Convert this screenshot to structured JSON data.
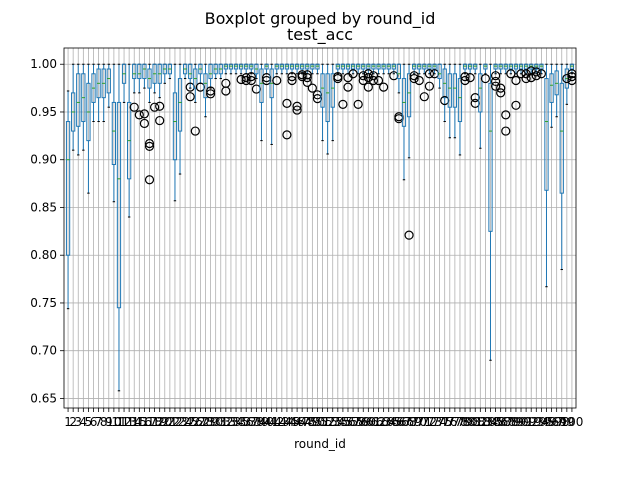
{
  "chart_data": {
    "type": "boxplot",
    "suptitle": "Boxplot grouped by round_id",
    "title": "test_acc",
    "xlabel": "round_id",
    "ylabel": "",
    "ylim": [
      0.64,
      1.017
    ],
    "yticks": [
      0.65,
      0.7,
      0.75,
      0.8,
      0.85,
      0.9,
      0.95,
      1.0
    ],
    "grid": true,
    "categories_range": [
      1,
      100
    ],
    "colors": {
      "box": "#1f77b4",
      "median": "#2ca02c",
      "cap": "#000000",
      "grid": "#b0b0b0"
    },
    "boxes": [
      {
        "round": 1,
        "whislo": 0.744,
        "q1": 0.8,
        "med": 0.9,
        "q3": 0.94,
        "whishi": 0.972,
        "fliers": []
      },
      {
        "round": 2,
        "whislo": 0.91,
        "q1": 0.93,
        "med": 0.95,
        "q3": 0.97,
        "whishi": 1.0,
        "fliers": []
      },
      {
        "round": 3,
        "whislo": 0.905,
        "q1": 0.935,
        "med": 0.96,
        "q3": 0.99,
        "whishi": 1.0,
        "fliers": []
      },
      {
        "round": 4,
        "whislo": 0.91,
        "q1": 0.94,
        "med": 0.965,
        "q3": 0.99,
        "whishi": 1.0,
        "fliers": []
      },
      {
        "round": 5,
        "whislo": 0.865,
        "q1": 0.92,
        "med": 0.95,
        "q3": 0.98,
        "whishi": 1.0,
        "fliers": []
      },
      {
        "round": 6,
        "whislo": 0.94,
        "q1": 0.96,
        "med": 0.975,
        "q3": 0.99,
        "whishi": 1.0,
        "fliers": []
      },
      {
        "round": 7,
        "whislo": 0.94,
        "q1": 0.965,
        "med": 0.98,
        "q3": 0.995,
        "whishi": 1.0,
        "fliers": []
      },
      {
        "round": 8,
        "whislo": 0.94,
        "q1": 0.965,
        "med": 0.98,
        "q3": 0.995,
        "whishi": 1.0,
        "fliers": []
      },
      {
        "round": 9,
        "whislo": 0.955,
        "q1": 0.97,
        "med": 0.985,
        "q3": 0.995,
        "whishi": 1.0,
        "fliers": []
      },
      {
        "round": 10,
        "whislo": 0.856,
        "q1": 0.895,
        "med": 0.93,
        "q3": 0.96,
        "whishi": 1.0,
        "fliers": []
      },
      {
        "round": 11,
        "whislo": 0.658,
        "q1": 0.745,
        "med": 0.88,
        "q3": 0.96,
        "whishi": 1.0,
        "fliers": []
      },
      {
        "round": 12,
        "whislo": 0.96,
        "q1": 0.98,
        "med": 0.99,
        "q3": 1.0,
        "whishi": 1.0,
        "fliers": []
      },
      {
        "round": 13,
        "whislo": 0.84,
        "q1": 0.88,
        "med": 0.92,
        "q3": 0.96,
        "whishi": 1.0,
        "fliers": []
      },
      {
        "round": 14,
        "whislo": 0.97,
        "q1": 0.985,
        "med": 0.99,
        "q3": 1.0,
        "whishi": 1.0,
        "fliers": [
          0.955
        ]
      },
      {
        "round": 15,
        "whislo": 0.97,
        "q1": 0.985,
        "med": 0.99,
        "q3": 1.0,
        "whishi": 1.0,
        "fliers": [
          0.947
        ]
      },
      {
        "round": 16,
        "whislo": 0.975,
        "q1": 0.985,
        "med": 0.995,
        "q3": 1.0,
        "whishi": 1.0,
        "fliers": [
          0.938,
          0.948
        ]
      },
      {
        "round": 17,
        "whislo": 0.96,
        "q1": 0.975,
        "med": 0.985,
        "q3": 0.995,
        "whishi": 1.0,
        "fliers": [
          0.879,
          0.914,
          0.917
        ]
      },
      {
        "round": 18,
        "whislo": 0.97,
        "q1": 0.98,
        "med": 0.99,
        "q3": 1.0,
        "whishi": 1.0,
        "fliers": [
          0.955
        ]
      },
      {
        "round": 19,
        "whislo": 0.965,
        "q1": 0.98,
        "med": 0.99,
        "q3": 1.0,
        "whishi": 1.0,
        "fliers": [
          0.941,
          0.956
        ]
      },
      {
        "round": 20,
        "whislo": 0.98,
        "q1": 0.99,
        "med": 0.995,
        "q3": 1.0,
        "whishi": 1.0,
        "fliers": []
      },
      {
        "round": 21,
        "whislo": 0.985,
        "q1": 0.99,
        "med": 0.995,
        "q3": 1.0,
        "whishi": 1.0,
        "fliers": []
      },
      {
        "round": 22,
        "whislo": 0.857,
        "q1": 0.9,
        "med": 0.94,
        "q3": 0.97,
        "whishi": 1.0,
        "fliers": []
      },
      {
        "round": 23,
        "whislo": 0.885,
        "q1": 0.93,
        "med": 0.96,
        "q3": 0.985,
        "whishi": 1.0,
        "fliers": []
      },
      {
        "round": 24,
        "whislo": 0.985,
        "q1": 0.99,
        "med": 0.995,
        "q3": 1.0,
        "whishi": 1.0,
        "fliers": []
      },
      {
        "round": 25,
        "whislo": 0.975,
        "q1": 0.985,
        "med": 0.99,
        "q3": 1.0,
        "whishi": 1.0,
        "fliers": [
          0.966,
          0.976
        ]
      },
      {
        "round": 26,
        "whislo": 0.96,
        "q1": 0.975,
        "med": 0.985,
        "q3": 0.995,
        "whishi": 1.0,
        "fliers": [
          0.93
        ]
      },
      {
        "round": 27,
        "whislo": 0.98,
        "q1": 0.99,
        "med": 0.995,
        "q3": 1.0,
        "whishi": 1.0,
        "fliers": [
          0.976
        ]
      },
      {
        "round": 28,
        "whislo": 0.945,
        "q1": 0.965,
        "med": 0.98,
        "q3": 0.99,
        "whishi": 1.0,
        "fliers": []
      },
      {
        "round": 29,
        "whislo": 0.975,
        "q1": 0.985,
        "med": 0.99,
        "q3": 1.0,
        "whishi": 1.0,
        "fliers": [
          0.969,
          0.972
        ]
      },
      {
        "round": 30,
        "whislo": 0.985,
        "q1": 0.99,
        "med": 0.995,
        "q3": 1.0,
        "whishi": 1.0,
        "fliers": []
      },
      {
        "round": 31,
        "whislo": 0.985,
        "q1": 0.99,
        "med": 0.995,
        "q3": 1.0,
        "whishi": 1.0,
        "fliers": []
      },
      {
        "round": 32,
        "whislo": 0.99,
        "q1": 0.995,
        "med": 0.998,
        "q3": 1.0,
        "whishi": 1.0,
        "fliers": [
          0.972,
          0.98
        ]
      },
      {
        "round": 33,
        "whislo": 0.99,
        "q1": 0.995,
        "med": 0.998,
        "q3": 1.0,
        "whishi": 1.0,
        "fliers": []
      },
      {
        "round": 34,
        "whislo": 0.99,
        "q1": 0.995,
        "med": 0.998,
        "q3": 1.0,
        "whishi": 1.0,
        "fliers": []
      },
      {
        "round": 35,
        "whislo": 0.99,
        "q1": 0.995,
        "med": 0.998,
        "q3": 1.0,
        "whishi": 1.0,
        "fliers": [
          0.984
        ]
      },
      {
        "round": 36,
        "whislo": 0.99,
        "q1": 0.995,
        "med": 0.998,
        "q3": 1.0,
        "whishi": 1.0,
        "fliers": [
          0.983,
          0.986
        ]
      },
      {
        "round": 37,
        "whislo": 0.99,
        "q1": 0.995,
        "med": 0.998,
        "q3": 1.0,
        "whishi": 1.0,
        "fliers": [
          0.983,
          0.987
        ]
      },
      {
        "round": 38,
        "whislo": 0.985,
        "q1": 0.99,
        "med": 0.995,
        "q3": 1.0,
        "whishi": 1.0,
        "fliers": [
          0.974
        ]
      },
      {
        "round": 39,
        "whislo": 0.92,
        "q1": 0.96,
        "med": 0.98,
        "q3": 0.995,
        "whishi": 1.0,
        "fliers": []
      },
      {
        "round": 40,
        "whislo": 0.99,
        "q1": 0.995,
        "med": 0.998,
        "q3": 1.0,
        "whishi": 1.0,
        "fliers": [
          0.983,
          0.986
        ]
      },
      {
        "round": 41,
        "whislo": 0.916,
        "q1": 0.965,
        "med": 0.98,
        "q3": 0.995,
        "whishi": 1.0,
        "fliers": []
      },
      {
        "round": 42,
        "whislo": 0.99,
        "q1": 0.995,
        "med": 0.998,
        "q3": 1.0,
        "whishi": 1.0,
        "fliers": [
          0.983
        ]
      },
      {
        "round": 43,
        "whislo": 0.99,
        "q1": 0.995,
        "med": 0.998,
        "q3": 1.0,
        "whishi": 1.0,
        "fliers": []
      },
      {
        "round": 44,
        "whislo": 0.99,
        "q1": 0.995,
        "med": 0.998,
        "q3": 1.0,
        "whishi": 1.0,
        "fliers": [
          0.926,
          0.959
        ]
      },
      {
        "round": 45,
        "whislo": 0.99,
        "q1": 0.995,
        "med": 0.998,
        "q3": 1.0,
        "whishi": 1.0,
        "fliers": [
          0.983,
          0.987
        ]
      },
      {
        "round": 46,
        "whislo": 0.99,
        "q1": 0.995,
        "med": 0.998,
        "q3": 1.0,
        "whishi": 1.0,
        "fliers": [
          0.952,
          0.956
        ]
      },
      {
        "round": 47,
        "whislo": 0.99,
        "q1": 0.995,
        "med": 0.998,
        "q3": 1.0,
        "whishi": 1.0,
        "fliers": [
          0.987,
          0.989
        ]
      },
      {
        "round": 48,
        "whislo": 0.99,
        "q1": 0.995,
        "med": 0.998,
        "q3": 1.0,
        "whishi": 1.0,
        "fliers": [
          0.981,
          0.986,
          0.989
        ]
      },
      {
        "round": 49,
        "whislo": 0.99,
        "q1": 0.995,
        "med": 0.998,
        "q3": 1.0,
        "whishi": 1.0,
        "fliers": [
          0.975
        ]
      },
      {
        "round": 50,
        "whislo": 0.99,
        "q1": 0.995,
        "med": 0.998,
        "q3": 1.0,
        "whishi": 1.0,
        "fliers": [
          0.964,
          0.968
        ]
      },
      {
        "round": 51,
        "whislo": 0.92,
        "q1": 0.955,
        "med": 0.975,
        "q3": 0.99,
        "whishi": 1.0,
        "fliers": []
      },
      {
        "round": 52,
        "whislo": 0.906,
        "q1": 0.94,
        "med": 0.97,
        "q3": 0.99,
        "whishi": 1.0,
        "fliers": []
      },
      {
        "round": 53,
        "whislo": 0.92,
        "q1": 0.955,
        "med": 0.975,
        "q3": 0.99,
        "whishi": 1.0,
        "fliers": []
      },
      {
        "round": 54,
        "whislo": 0.99,
        "q1": 0.995,
        "med": 0.998,
        "q3": 1.0,
        "whishi": 1.0,
        "fliers": [
          0.985,
          0.987
        ]
      },
      {
        "round": 55,
        "whislo": 0.99,
        "q1": 0.995,
        "med": 0.998,
        "q3": 1.0,
        "whishi": 1.0,
        "fliers": [
          0.958
        ]
      },
      {
        "round": 56,
        "whislo": 0.99,
        "q1": 0.995,
        "med": 0.998,
        "q3": 1.0,
        "whishi": 1.0,
        "fliers": [
          0.976,
          0.986
        ]
      },
      {
        "round": 57,
        "whislo": 0.99,
        "q1": 0.995,
        "med": 0.998,
        "q3": 1.0,
        "whishi": 1.0,
        "fliers": [
          0.99
        ]
      },
      {
        "round": 58,
        "whislo": 0.99,
        "q1": 0.995,
        "med": 0.998,
        "q3": 1.0,
        "whishi": 1.0,
        "fliers": [
          0.958
        ]
      },
      {
        "round": 59,
        "whislo": 0.99,
        "q1": 0.995,
        "med": 0.998,
        "q3": 1.0,
        "whishi": 1.0,
        "fliers": [
          0.983,
          0.988
        ]
      },
      {
        "round": 60,
        "whislo": 0.99,
        "q1": 0.995,
        "med": 0.998,
        "q3": 1.0,
        "whishi": 1.0,
        "fliers": [
          0.976,
          0.986,
          0.99
        ]
      },
      {
        "round": 61,
        "whislo": 0.99,
        "q1": 0.995,
        "med": 0.998,
        "q3": 1.0,
        "whishi": 1.0,
        "fliers": [
          0.983,
          0.988
        ]
      },
      {
        "round": 62,
        "whislo": 0.99,
        "q1": 0.995,
        "med": 0.998,
        "q3": 1.0,
        "whishi": 1.0,
        "fliers": [
          0.983
        ]
      },
      {
        "round": 63,
        "whislo": 0.99,
        "q1": 0.995,
        "med": 0.998,
        "q3": 1.0,
        "whishi": 1.0,
        "fliers": [
          0.976
        ]
      },
      {
        "round": 64,
        "whislo": 0.99,
        "q1": 0.995,
        "med": 0.998,
        "q3": 1.0,
        "whishi": 1.0,
        "fliers": []
      },
      {
        "round": 65,
        "whislo": 0.99,
        "q1": 0.995,
        "med": 0.998,
        "q3": 1.0,
        "whishi": 1.0,
        "fliers": [
          0.988
        ]
      },
      {
        "round": 66,
        "whislo": 0.97,
        "q1": 0.985,
        "med": 0.99,
        "q3": 1.0,
        "whishi": 1.0,
        "fliers": [
          0.943,
          0.945
        ]
      },
      {
        "round": 67,
        "whislo": 0.879,
        "q1": 0.935,
        "med": 0.96,
        "q3": 0.985,
        "whishi": 1.0,
        "fliers": []
      },
      {
        "round": 68,
        "whislo": 0.902,
        "q1": 0.945,
        "med": 0.97,
        "q3": 0.99,
        "whishi": 1.0,
        "fliers": [
          0.821
        ]
      },
      {
        "round": 69,
        "whislo": 0.99,
        "q1": 0.995,
        "med": 0.998,
        "q3": 1.0,
        "whishi": 1.0,
        "fliers": [
          0.985,
          0.988
        ]
      },
      {
        "round": 70,
        "whislo": 0.99,
        "q1": 0.995,
        "med": 0.998,
        "q3": 1.0,
        "whishi": 1.0,
        "fliers": [
          0.983
        ]
      },
      {
        "round": 71,
        "whislo": 0.99,
        "q1": 0.995,
        "med": 0.998,
        "q3": 1.0,
        "whishi": 1.0,
        "fliers": [
          0.966
        ]
      },
      {
        "round": 72,
        "whislo": 0.99,
        "q1": 0.995,
        "med": 0.998,
        "q3": 1.0,
        "whishi": 1.0,
        "fliers": [
          0.977,
          0.99
        ]
      },
      {
        "round": 73,
        "whislo": 0.99,
        "q1": 0.995,
        "med": 0.998,
        "q3": 1.0,
        "whishi": 1.0,
        "fliers": [
          0.99
        ]
      },
      {
        "round": 74,
        "whislo": 0.975,
        "q1": 0.985,
        "med": 0.99,
        "q3": 1.0,
        "whishi": 1.0,
        "fliers": []
      },
      {
        "round": 75,
        "whislo": 0.94,
        "q1": 0.965,
        "med": 0.98,
        "q3": 0.995,
        "whishi": 1.0,
        "fliers": [
          0.962
        ]
      },
      {
        "round": 76,
        "whislo": 0.923,
        "q1": 0.955,
        "med": 0.975,
        "q3": 0.99,
        "whishi": 1.0,
        "fliers": []
      },
      {
        "round": 77,
        "whislo": 0.923,
        "q1": 0.955,
        "med": 0.975,
        "q3": 0.99,
        "whishi": 1.0,
        "fliers": []
      },
      {
        "round": 78,
        "whislo": 0.905,
        "q1": 0.94,
        "med": 0.965,
        "q3": 0.985,
        "whishi": 1.0,
        "fliers": []
      },
      {
        "round": 79,
        "whislo": 0.99,
        "q1": 0.995,
        "med": 0.998,
        "q3": 1.0,
        "whishi": 1.0,
        "fliers": [
          0.983,
          0.987
        ]
      },
      {
        "round": 80,
        "whislo": 0.99,
        "q1": 0.995,
        "med": 0.998,
        "q3": 1.0,
        "whishi": 1.0,
        "fliers": [
          0.986
        ]
      },
      {
        "round": 81,
        "whislo": 0.99,
        "q1": 0.995,
        "med": 0.998,
        "q3": 1.0,
        "whishi": 1.0,
        "fliers": [
          0.959,
          0.965
        ]
      },
      {
        "round": 82,
        "whislo": 0.912,
        "q1": 0.95,
        "med": 0.975,
        "q3": 0.99,
        "whishi": 1.0,
        "fliers": []
      },
      {
        "round": 83,
        "whislo": 0.99,
        "q1": 0.995,
        "med": 0.998,
        "q3": 1.0,
        "whishi": 1.0,
        "fliers": [
          0.985
        ]
      },
      {
        "round": 84,
        "whislo": 0.69,
        "q1": 0.825,
        "med": 0.93,
        "q3": 0.98,
        "whishi": 1.0,
        "fliers": []
      },
      {
        "round": 85,
        "whislo": 0.99,
        "q1": 0.995,
        "med": 0.998,
        "q3": 1.0,
        "whishi": 1.0,
        "fliers": [
          0.977,
          0.982,
          0.988
        ]
      },
      {
        "round": 86,
        "whislo": 0.99,
        "q1": 0.995,
        "med": 0.998,
        "q3": 1.0,
        "whishi": 1.0,
        "fliers": [
          0.97,
          0.975
        ]
      },
      {
        "round": 87,
        "whislo": 0.99,
        "q1": 0.995,
        "med": 0.998,
        "q3": 1.0,
        "whishi": 1.0,
        "fliers": [
          0.93,
          0.947
        ]
      },
      {
        "round": 88,
        "whislo": 0.99,
        "q1": 0.995,
        "med": 0.998,
        "q3": 1.0,
        "whishi": 1.0,
        "fliers": [
          0.99
        ]
      },
      {
        "round": 89,
        "whislo": 0.99,
        "q1": 0.995,
        "med": 0.998,
        "q3": 1.0,
        "whishi": 1.0,
        "fliers": [
          0.957,
          0.983
        ]
      },
      {
        "round": 90,
        "whislo": 0.99,
        "q1": 0.995,
        "med": 0.998,
        "q3": 1.0,
        "whishi": 1.0,
        "fliers": [
          0.99
        ]
      },
      {
        "round": 91,
        "whislo": 0.99,
        "q1": 0.995,
        "med": 0.998,
        "q3": 1.0,
        "whishi": 1.0,
        "fliers": [
          0.985,
          0.99
        ]
      },
      {
        "round": 92,
        "whislo": 0.99,
        "q1": 0.995,
        "med": 0.998,
        "q3": 1.0,
        "whishi": 1.0,
        "fliers": [
          0.986,
          0.993
        ]
      },
      {
        "round": 93,
        "whislo": 0.99,
        "q1": 0.995,
        "med": 0.998,
        "q3": 1.0,
        "whishi": 1.0,
        "fliers": [
          0.988,
          0.992
        ]
      },
      {
        "round": 94,
        "whislo": 0.99,
        "q1": 0.995,
        "med": 0.998,
        "q3": 1.0,
        "whishi": 1.0,
        "fliers": [
          0.99
        ]
      },
      {
        "round": 95,
        "whislo": 0.767,
        "q1": 0.868,
        "med": 0.94,
        "q3": 0.985,
        "whishi": 1.0,
        "fliers": []
      },
      {
        "round": 96,
        "whislo": 0.934,
        "q1": 0.96,
        "med": 0.978,
        "q3": 0.99,
        "whishi": 1.0,
        "fliers": []
      },
      {
        "round": 97,
        "whislo": 0.945,
        "q1": 0.968,
        "med": 0.98,
        "q3": 0.993,
        "whishi": 1.0,
        "fliers": []
      },
      {
        "round": 98,
        "whislo": 0.785,
        "q1": 0.865,
        "med": 0.93,
        "q3": 0.98,
        "whishi": 1.0,
        "fliers": []
      },
      {
        "round": 99,
        "whislo": 0.958,
        "q1": 0.975,
        "med": 0.985,
        "q3": 0.995,
        "whishi": 1.0,
        "fliers": [
          0.985
        ]
      },
      {
        "round": 100,
        "whislo": 0.99,
        "q1": 0.995,
        "med": 0.998,
        "q3": 1.0,
        "whishi": 1.0,
        "fliers": [
          0.983,
          0.987,
          0.99
        ]
      }
    ]
  }
}
